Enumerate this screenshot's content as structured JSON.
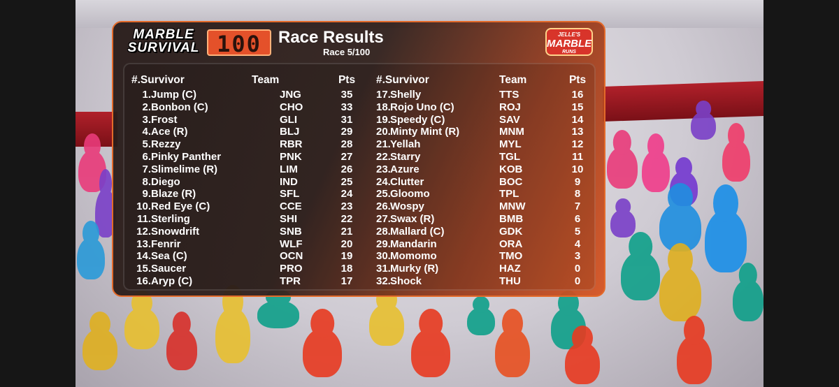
{
  "header": {
    "logo_line1": "MARBLE",
    "logo_line2": "SURVIVAL",
    "logo_number": "100",
    "title": "Race Results",
    "subtitle": "Race 5/100",
    "brand_line1": "JELLE'S",
    "brand_line2": "MARBLE",
    "brand_line3": "RUNS"
  },
  "columns": {
    "survivor": "#.Survivor",
    "team": "Team",
    "pts": "Pts"
  },
  "results_left": [
    {
      "rank": "1.",
      "name": "Jump (C)",
      "team": "JNG",
      "pts": "35"
    },
    {
      "rank": "2.",
      "name": "Bonbon (C)",
      "team": "CHO",
      "pts": "33"
    },
    {
      "rank": "3.",
      "name": "Frost",
      "team": "GLI",
      "pts": "31"
    },
    {
      "rank": "4.",
      "name": "Ace (R)",
      "team": "BLJ",
      "pts": "29"
    },
    {
      "rank": "5.",
      "name": "Rezzy",
      "team": "RBR",
      "pts": "28"
    },
    {
      "rank": "6.",
      "name": "Pinky Panther",
      "team": "PNK",
      "pts": "27"
    },
    {
      "rank": "7.",
      "name": "Slimelime (R)",
      "team": "LIM",
      "pts": "26"
    },
    {
      "rank": "8.",
      "name": "Diego",
      "team": "IND",
      "pts": "25"
    },
    {
      "rank": "9.",
      "name": "Blaze (R)",
      "team": "SFL",
      "pts": "24"
    },
    {
      "rank": "10.",
      "name": "Red Eye (C)",
      "team": "CCE",
      "pts": "23"
    },
    {
      "rank": "11.",
      "name": "Sterling",
      "team": "SHI",
      "pts": "22"
    },
    {
      "rank": "12.",
      "name": "Snowdrift",
      "team": "SNB",
      "pts": "21"
    },
    {
      "rank": "13.",
      "name": "Fenrir",
      "team": "WLF",
      "pts": "20"
    },
    {
      "rank": "14.",
      "name": "Sea (C)",
      "team": "OCN",
      "pts": "19"
    },
    {
      "rank": "15.",
      "name": "Saucer",
      "team": "PRO",
      "pts": "18"
    },
    {
      "rank": "16.",
      "name": "Aryp (C)",
      "team": "TPR",
      "pts": "17"
    }
  ],
  "results_right": [
    {
      "rank": "17.",
      "name": "Shelly",
      "team": "TTS",
      "pts": "16"
    },
    {
      "rank": "18.",
      "name": "Rojo Uno (C)",
      "team": "ROJ",
      "pts": "15"
    },
    {
      "rank": "19.",
      "name": "Speedy (C)",
      "team": "SAV",
      "pts": "14"
    },
    {
      "rank": "20.",
      "name": "Minty Mint (R)",
      "team": "MNM",
      "pts": "13"
    },
    {
      "rank": "21.",
      "name": "Yellah",
      "team": "MYL",
      "pts": "12"
    },
    {
      "rank": "22.",
      "name": "Starry",
      "team": "TGL",
      "pts": "11"
    },
    {
      "rank": "23.",
      "name": "Azure",
      "team": "KOB",
      "pts": "10"
    },
    {
      "rank": "24.",
      "name": "Clutter",
      "team": "BOC",
      "pts": "9"
    },
    {
      "rank": "25.",
      "name": "Gloomo",
      "team": "TPL",
      "pts": "8"
    },
    {
      "rank": "26.",
      "name": "Wospy",
      "team": "MNW",
      "pts": "7"
    },
    {
      "rank": "27.",
      "name": "Swax (R)",
      "team": "BMB",
      "pts": "6"
    },
    {
      "rank": "28.",
      "name": "Mallard (C)",
      "team": "GDK",
      "pts": "5"
    },
    {
      "rank": "29.",
      "name": "Mandarin",
      "team": "ORA",
      "pts": "4"
    },
    {
      "rank": "30.",
      "name": "Momomo",
      "team": "TMO",
      "pts": "3"
    },
    {
      "rank": "31.",
      "name": "Murky (R)",
      "team": "HAZ",
      "pts": "0"
    },
    {
      "rank": "32.",
      "name": "Shock",
      "team": "THU",
      "pts": "0"
    }
  ],
  "colors": {
    "panel_dark": "#2c1e1b",
    "panel_accent": "#d75523",
    "logo_orange": "#e4512a",
    "text": "#ffffff"
  }
}
